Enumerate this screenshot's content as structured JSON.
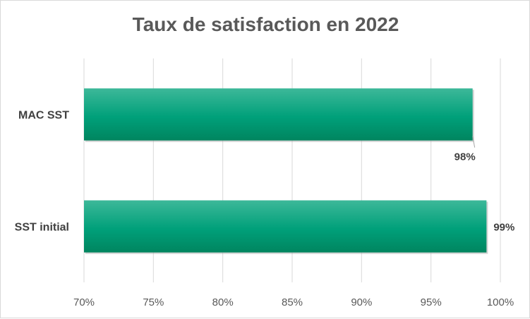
{
  "chart_data": {
    "type": "bar",
    "orientation": "horizontal",
    "title": "Taux de satisfaction  en 2022",
    "categories": [
      "MAC SST",
      "SST initial"
    ],
    "values": [
      0.98,
      0.99
    ],
    "data_labels": [
      "98%",
      "99%"
    ],
    "xlim": [
      0.7,
      1.0
    ],
    "xticks": [
      0.7,
      0.75,
      0.8,
      0.85,
      0.9,
      0.95,
      1.0
    ],
    "xtick_labels": [
      "70%",
      "75%",
      "80%",
      "85%",
      "90%",
      "95%",
      "100%"
    ],
    "xlabel": "",
    "ylabel": "",
    "grid": true,
    "legend": "none",
    "bar_color": "#00A07A",
    "bar_color_light": "#3DB899",
    "bar_color_dark": "#00855F"
  }
}
